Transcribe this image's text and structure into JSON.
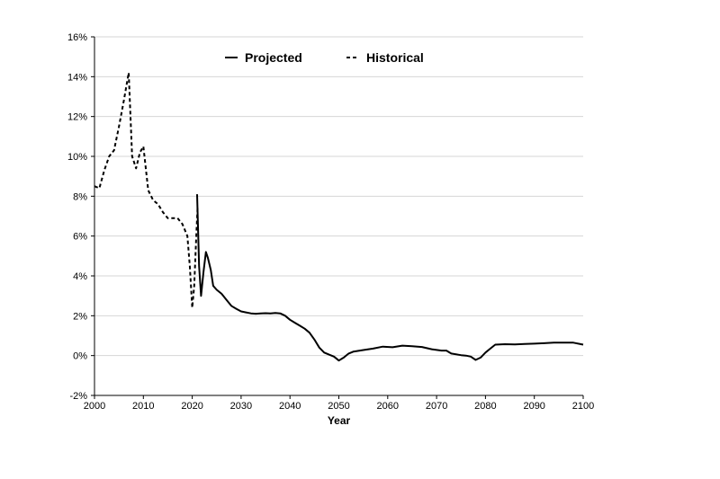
{
  "chart_data": {
    "type": "line",
    "title": "",
    "xlabel": "Year",
    "ylabel": "",
    "xlim": [
      2000,
      2100
    ],
    "ylim": [
      -2,
      16
    ],
    "x_ticks": [
      "2000",
      "2010",
      "2020",
      "2030",
      "2040",
      "2050",
      "2060",
      "2070",
      "2080",
      "2090",
      "2100"
    ],
    "y_ticks": [
      "-2%",
      "0%",
      "2%",
      "4%",
      "6%",
      "8%",
      "10%",
      "12%",
      "14%",
      "16%"
    ],
    "grid": "horizontal",
    "legend_position": "top-center",
    "series": [
      {
        "name": "Projected",
        "style": "solid",
        "color": "#000000",
        "x": [
          2021.0,
          2021.4,
          2021.8,
          2022.3,
          2022.8,
          2023.2,
          2023.8,
          2024.3,
          2025,
          2026,
          2027,
          2028,
          2029,
          2030,
          2031,
          2032,
          2033,
          2034,
          2035,
          2036,
          2037,
          2038,
          2039,
          2040,
          2041,
          2042,
          2043,
          2044,
          2045,
          2046,
          2047,
          2048,
          2049,
          2050,
          2051,
          2052,
          2053,
          2055,
          2057,
          2059,
          2061,
          2063,
          2065,
          2067,
          2069,
          2071,
          2072,
          2073,
          2075,
          2076,
          2077,
          2078,
          2079,
          2080,
          2081,
          2082,
          2084,
          2086,
          2088,
          2090,
          2092,
          2094,
          2096,
          2098,
          2100
        ],
        "values": [
          8.1,
          4.5,
          3.0,
          4.2,
          5.2,
          4.9,
          4.3,
          3.5,
          3.3,
          3.1,
          2.8,
          2.5,
          2.35,
          2.22,
          2.17,
          2.12,
          2.1,
          2.12,
          2.13,
          2.12,
          2.14,
          2.12,
          2.0,
          1.8,
          1.65,
          1.5,
          1.35,
          1.15,
          0.8,
          0.4,
          0.15,
          0.05,
          -0.05,
          -0.25,
          -0.1,
          0.1,
          0.2,
          0.28,
          0.35,
          0.45,
          0.42,
          0.5,
          0.47,
          0.43,
          0.32,
          0.25,
          0.25,
          0.1,
          0.02,
          0.0,
          -0.05,
          -0.22,
          -0.1,
          0.15,
          0.35,
          0.55,
          0.57,
          0.56,
          0.58,
          0.6,
          0.62,
          0.65,
          0.65,
          0.65,
          0.55
        ]
      },
      {
        "name": "Historical",
        "style": "dashed",
        "color": "#000000",
        "x": [
          2000,
          2001,
          2002,
          2003,
          2004,
          2005,
          2006,
          2007,
          2007.7,
          2008.5,
          2009.3,
          2010,
          2011,
          2012,
          2013,
          2014,
          2015,
          2016,
          2017,
          2018,
          2019,
          2019.5,
          2020,
          2020.4,
          2020.8,
          2021.1
        ],
        "values": [
          8.5,
          8.4,
          9.3,
          10.0,
          10.3,
          11.5,
          12.8,
          14.2,
          10.0,
          9.4,
          10.2,
          10.5,
          8.3,
          7.8,
          7.6,
          7.2,
          6.9,
          6.9,
          6.9,
          6.6,
          6.0,
          4.5,
          2.4,
          3.5,
          5.8,
          7.5
        ]
      }
    ]
  }
}
